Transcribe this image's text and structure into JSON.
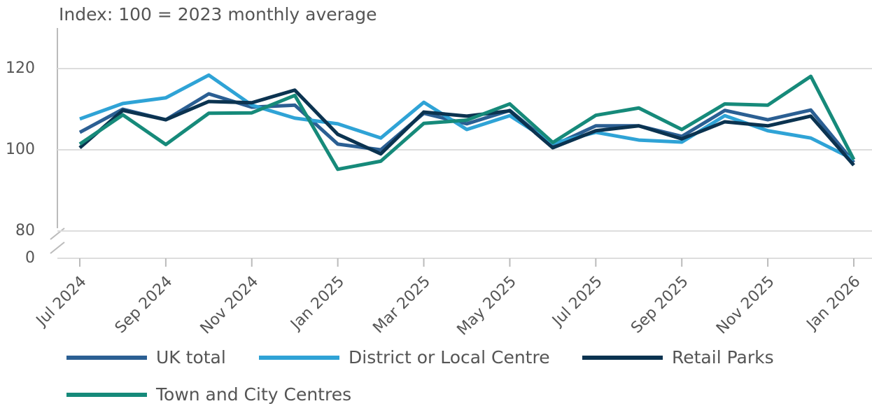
{
  "chart_data": {
    "type": "line",
    "subtitle": "Index: 100 = 2023 monthly average",
    "categories": [
      "Jul 2024",
      null,
      "Sep 2024",
      null,
      "Nov 2024",
      null,
      "Jan 2025",
      null,
      "Mar 2025",
      null,
      "May 2025",
      null,
      "Jul 2025",
      null,
      "Sep 2025",
      null,
      "Nov 2025",
      null,
      "Jan 2026"
    ],
    "series": [
      {
        "name": "UK total",
        "color": "#2b5f93",
        "values": [
          104.3,
          110,
          107.4,
          113.8,
          110.5,
          111,
          101.4,
          100,
          109,
          106.4,
          109.7,
          101,
          105.9,
          105.9,
          103.3,
          109.7,
          107.4,
          109.8,
          96.9
        ]
      },
      {
        "name": "District or Local Centre",
        "color": "#2fa3d6",
        "values": [
          107.6,
          111.4,
          112.8,
          118.4,
          111,
          107.8,
          106.4,
          102.9,
          111.7,
          105,
          108.4,
          101.6,
          104.3,
          102.4,
          101.9,
          108.4,
          104.7,
          102.9,
          97.6
        ]
      },
      {
        "name": "Retail Parks",
        "color": "#0b3350",
        "values": [
          100.5,
          109.7,
          107.4,
          111.9,
          111.6,
          114.7,
          103.8,
          99,
          109.3,
          108.3,
          109.6,
          100.5,
          104.7,
          105.9,
          102.7,
          106.9,
          105.9,
          108.3,
          96.2
        ]
      },
      {
        "name": "Town and City Centres",
        "color": "#168a7a",
        "values": [
          101.4,
          108.6,
          101.3,
          109,
          109.1,
          113.4,
          95.2,
          97.2,
          106.5,
          107.3,
          111.3,
          101.8,
          108.5,
          110.3,
          105,
          111.3,
          111,
          118.1,
          97.6
        ]
      }
    ],
    "ylim": [
      0,
      130
    ],
    "yticks": [
      0,
      80,
      100,
      120
    ],
    "axis_break": [
      0,
      80
    ],
    "grid": true
  }
}
